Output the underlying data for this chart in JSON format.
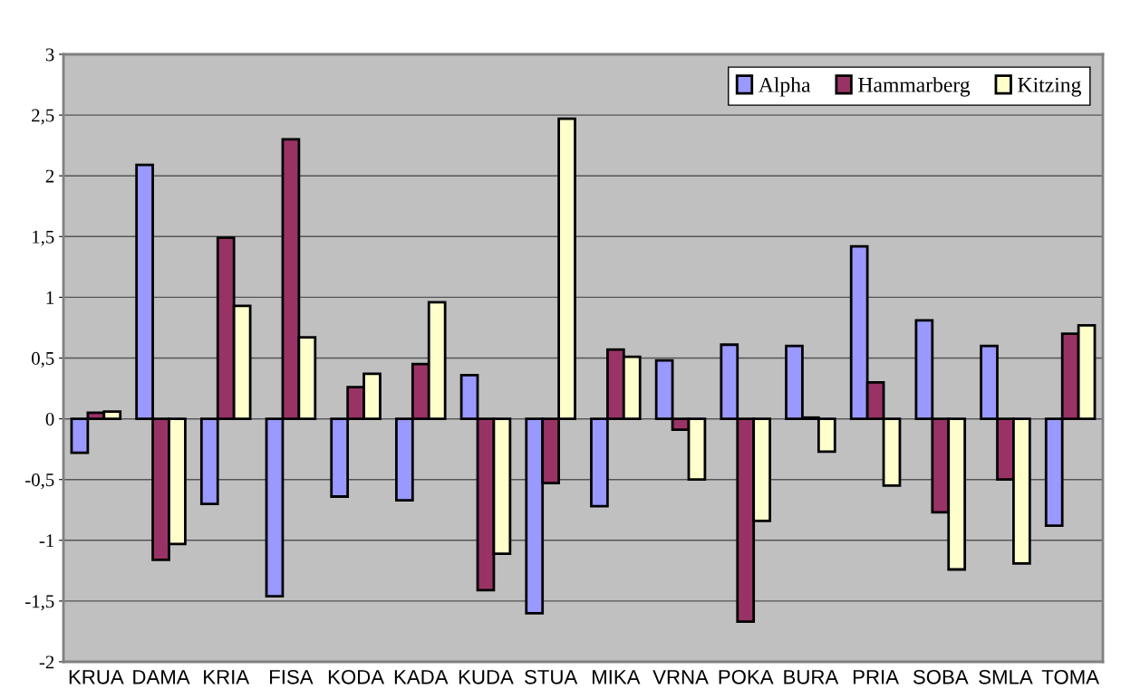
{
  "chart_data": {
    "type": "bar",
    "categories": [
      "KRUA",
      "DAMA",
      "KRIA",
      "FISA",
      "KODA",
      "KADA",
      "KUDA",
      "STUA",
      "MIKA",
      "VRNA",
      "POKA",
      "BURA",
      "PRIA",
      "SOBA",
      "SMLA",
      "TOMA"
    ],
    "series": [
      {
        "name": "Alpha",
        "color": "#9999ff",
        "values": [
          -0.28,
          2.09,
          -0.7,
          -1.46,
          -0.64,
          -0.67,
          0.36,
          -1.6,
          -0.72,
          0.48,
          0.61,
          0.6,
          1.42,
          0.81,
          0.6,
          -0.88
        ]
      },
      {
        "name": "Hammarberg",
        "color": "#993366",
        "values": [
          0.05,
          -1.16,
          1.49,
          2.3,
          0.26,
          0.45,
          -1.41,
          -0.53,
          0.57,
          -0.09,
          -1.67,
          0.01,
          0.3,
          -0.77,
          -0.5,
          0.7
        ]
      },
      {
        "name": "Kitzing",
        "color": "#ffffcc",
        "values": [
          0.06,
          -1.03,
          0.93,
          0.67,
          0.37,
          0.96,
          -1.11,
          2.47,
          0.51,
          -0.5,
          -0.84,
          -0.27,
          -0.55,
          -1.24,
          -1.19,
          0.77
        ]
      }
    ],
    "ylim": [
      -2,
      3
    ],
    "yticks": [
      {
        "value": -2,
        "label": "-2"
      },
      {
        "value": -1.5,
        "label": "-1,5"
      },
      {
        "value": -1,
        "label": "-1"
      },
      {
        "value": -0.5,
        "label": "-0,5"
      },
      {
        "value": 0,
        "label": "0"
      },
      {
        "value": 0.5,
        "label": "0,5"
      },
      {
        "value": 1,
        "label": "1"
      },
      {
        "value": 1.5,
        "label": "1,5"
      },
      {
        "value": 2,
        "label": "2"
      },
      {
        "value": 2.5,
        "label": "2,5"
      },
      {
        "value": 3,
        "label": "3"
      }
    ],
    "grid": "y",
    "legend": "top right"
  }
}
